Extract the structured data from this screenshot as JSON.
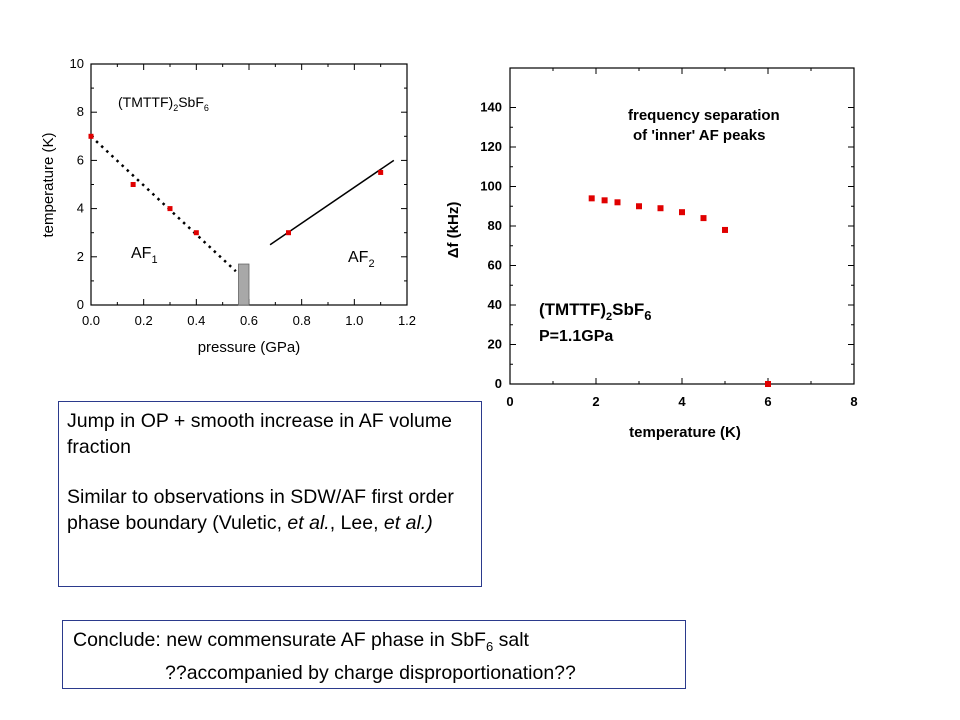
{
  "chart_data": [
    {
      "type": "scatter",
      "xlabel": "pressure (GPa)",
      "ylabel": "temperature (K)",
      "xlim": [
        0,
        1.2
      ],
      "ylim": [
        0,
        10
      ],
      "xticks": [
        "0.0",
        "0.2",
        "0.4",
        "0.6",
        "0.8",
        "1.0",
        "1.2"
      ],
      "yticks": [
        "0",
        "2",
        "4",
        "6",
        "8",
        "10"
      ],
      "grid": false,
      "annotations": {
        "compound_main": "(TMTTF)",
        "compound_sub": "2",
        "compound_tail": "SbF",
        "compound_sub2": "6",
        "af1_main": "AF",
        "af1_sub": "1",
        "af2_main": "AF",
        "af2_sub": "2"
      },
      "points": [
        {
          "x": 0.0,
          "y": 7.0
        },
        {
          "x": 0.16,
          "y": 5.0
        },
        {
          "x": 0.3,
          "y": 4.0
        },
        {
          "x": 0.4,
          "y": 3.0
        },
        {
          "x": 0.75,
          "y": 3.0
        },
        {
          "x": 1.1,
          "y": 5.5
        }
      ],
      "dotted_line": {
        "from": [
          0.0,
          7.0
        ],
        "to": [
          0.55,
          1.4
        ]
      },
      "solid_line": {
        "from": [
          0.68,
          2.5
        ],
        "to": [
          1.15,
          6.0
        ]
      },
      "shaded_region": {
        "x": [
          0.56,
          0.6
        ],
        "y": [
          0,
          1.7
        ],
        "color": "#a8a8a8"
      },
      "point_color": "#e00000"
    },
    {
      "type": "scatter",
      "xlabel": "temperature (K)",
      "ylabel_symbol": "Δ",
      "ylabel": "f (kHz)",
      "xlim": [
        0,
        8
      ],
      "ylim": [
        0,
        160
      ],
      "xticks": [
        "0",
        "2",
        "4",
        "6",
        "8"
      ],
      "yticks": [
        "0",
        "20",
        "40",
        "60",
        "80",
        "100",
        "120",
        "140"
      ],
      "grid": false,
      "annotations": {
        "title_line1": "frequency separation",
        "title_line2": "of 'inner' AF peaks",
        "compound_main": "(TMTTF)",
        "compound_sub": "2",
        "compound_tail": "SbF",
        "compound_sub2": "6",
        "pressure": "P=1.1GPa"
      },
      "points": [
        {
          "x": 1.9,
          "y": 94
        },
        {
          "x": 2.2,
          "y": 93
        },
        {
          "x": 2.5,
          "y": 92
        },
        {
          "x": 3.0,
          "y": 90
        },
        {
          "x": 3.5,
          "y": 89
        },
        {
          "x": 4.0,
          "y": 87
        },
        {
          "x": 4.5,
          "y": 84
        },
        {
          "x": 5.0,
          "y": 78
        },
        {
          "x": 6.0,
          "y": 0
        }
      ],
      "point_color": "#e00000"
    }
  ],
  "notes": {
    "line1": "Jump in OP + smooth increase in AF volume fraction",
    "line2_pre": "Similar to observations in SDW/AF first order phase boundary (Vuletic, ",
    "line2_et1": "et al.",
    "line2_mid": ", Lee, ",
    "line2_et2": "et al.)"
  },
  "conclusion": {
    "prefix": "Conclude: new commensurate AF phase in SbF",
    "sub": "6",
    "suffix": " salt",
    "line2": "??accompanied by charge disproportionation??"
  }
}
